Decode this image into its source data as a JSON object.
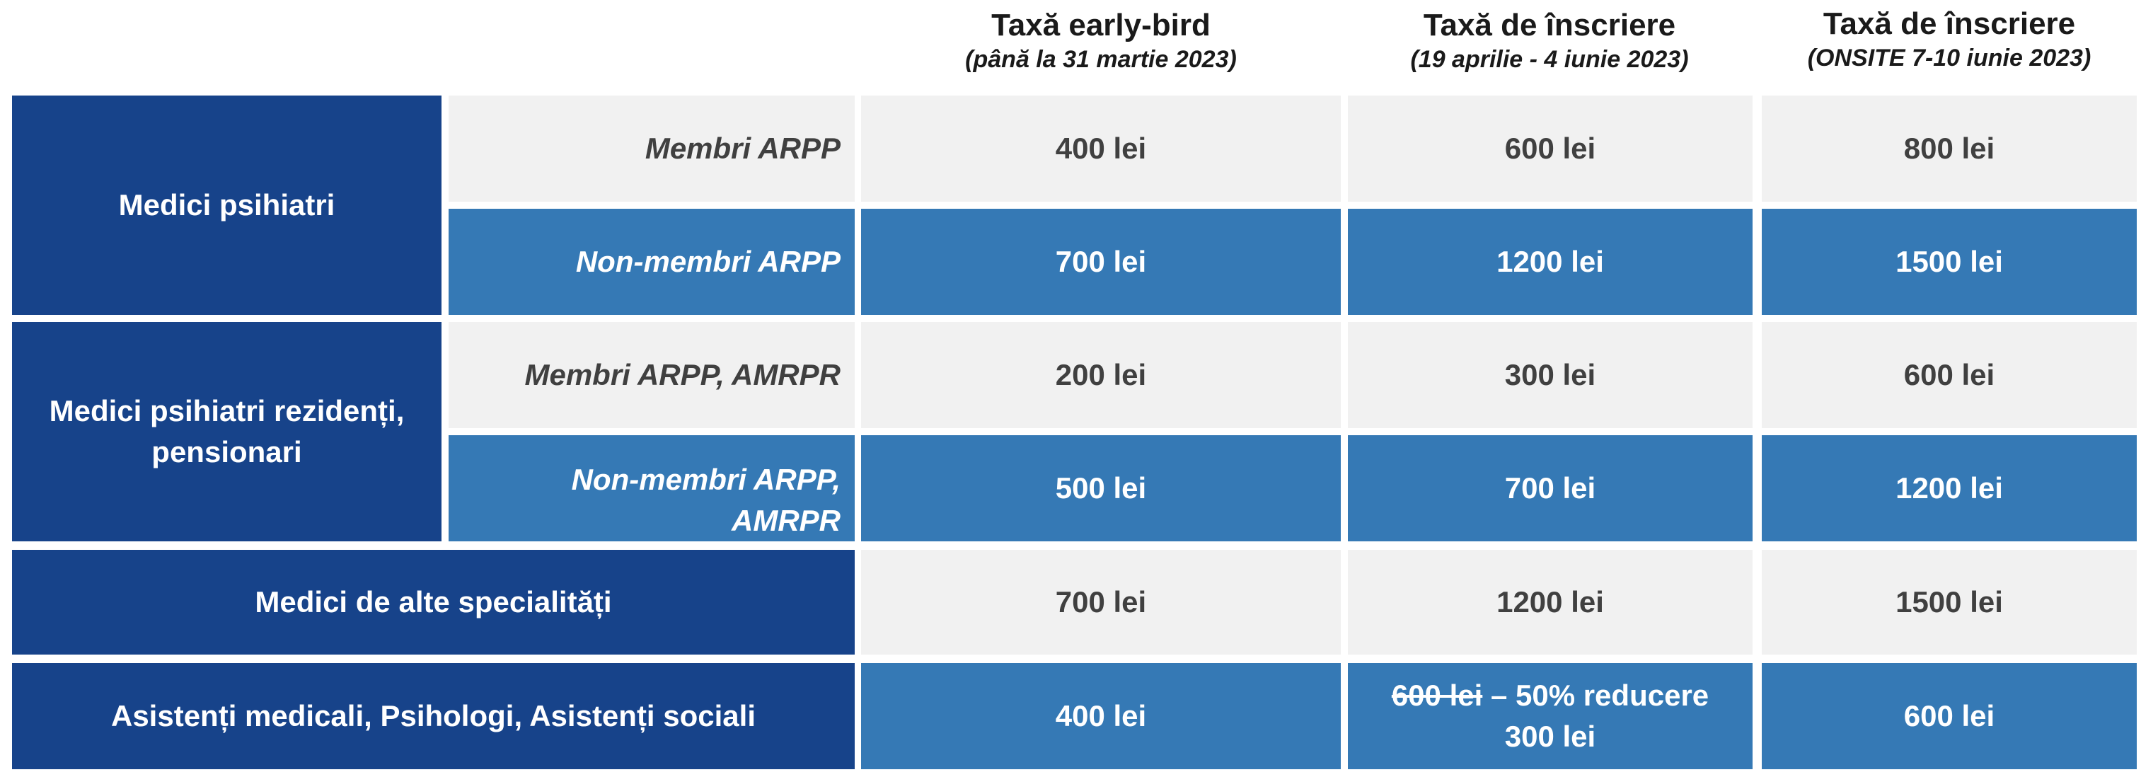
{
  "header": {
    "col1": {
      "title": "Taxă early-bird",
      "subtitle": "(până la 31 martie 2023)"
    },
    "col2": {
      "title": "Taxă de înscriere",
      "subtitle": "(19 aprilie - 4 iunie 2023)"
    },
    "col3": {
      "title": "Taxă de înscriere",
      "subtitle": "(ONSITE 7-10 iunie 2023)"
    }
  },
  "groups": {
    "g1": {
      "label": "Medici psihiatri"
    },
    "g2": {
      "label_line1": "Medici psihiatri rezidenți,",
      "label_line2": "pensionari"
    }
  },
  "rows": {
    "r1": {
      "label": "Membri ARPP",
      "c1": "400 lei",
      "c2": "600 lei",
      "c3": "800 lei"
    },
    "r2": {
      "label": "Non-membri ARPP",
      "c1": "700 lei",
      "c2": "1200 lei",
      "c3": "1500 lei"
    },
    "r3": {
      "label": "Membri ARPP, AMRPR",
      "c1": "200 lei",
      "c2": "300 lei",
      "c3": "600 lei"
    },
    "r4": {
      "label_line1": "Non-membri ARPP,",
      "label_line2": "AMRPR",
      "c1": "500 lei",
      "c2": "700 lei",
      "c3": "1200 lei"
    },
    "r5": {
      "label": "Medici de alte specialități",
      "c1": "700 lei",
      "c2": "1200 lei",
      "c3": "1500 lei"
    },
    "r6": {
      "label": "Asistenți medicali,  Psihologi,  Asistenți sociali",
      "c1": "400 lei",
      "c2_old": "600 lei",
      "c2_discount": " – 50% reducere",
      "c2_new": "300 lei",
      "c3": "600 lei"
    }
  },
  "colors": {
    "dark_blue": "#17438a",
    "mid_blue": "#3579b5",
    "light_gray": "#f1f1f1"
  }
}
